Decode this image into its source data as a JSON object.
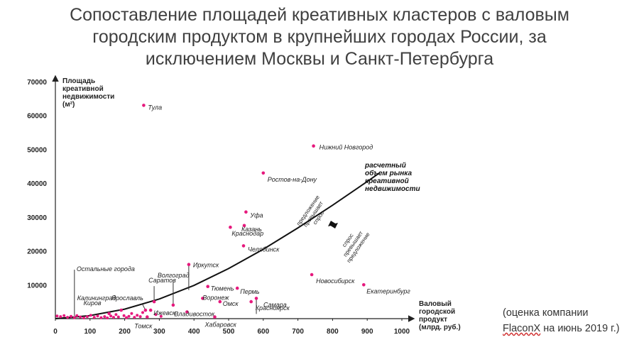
{
  "title_lines": [
    "Сопоставление площадей креативных кластеров с валовым",
    "городским продуктом в крупнейших городах России, за",
    "исключением Москвы и Санкт-Петербурга"
  ],
  "note": {
    "line1": "(оценка компании",
    "line2_brand": "FlaconX",
    "line2_rest": " на июнь 2019 г.)"
  },
  "colors": {
    "point": "#e6197d",
    "axis": "#222222",
    "text": "#222222",
    "title": "#404040"
  },
  "chart_data": {
    "type": "scatter",
    "title": "Сопоставление площадей креативных кластеров с валовым городским продуктом в крупнейших городах России, за исключением Москвы и Санкт-Петербурга",
    "ylabel_lines": [
      "Площадь",
      "креативной",
      "недвижимости",
      "(м²)"
    ],
    "xlabel_lines": [
      "Валовый",
      "городской",
      "продукт",
      "(млрд. руб.)"
    ],
    "xlim": [
      0,
      1000
    ],
    "ylim": [
      0,
      70000
    ],
    "x_ticks": [
      0,
      100,
      200,
      300,
      400,
      500,
      600,
      700,
      800,
      900,
      1000
    ],
    "y_ticks": [
      10000,
      20000,
      30000,
      40000,
      50000,
      60000,
      70000
    ],
    "grid": false,
    "legend": "none",
    "points": [
      {
        "name": "Тула",
        "x": 255,
        "y": 63000
      },
      {
        "name": "Нижний Новгород",
        "x": 745,
        "y": 51000
      },
      {
        "name": "Ростов-на-Дону",
        "x": 600,
        "y": 43000
      },
      {
        "name": "Уфа",
        "x": 550,
        "y": 31500
      },
      {
        "name": "Казань",
        "x": 545,
        "y": 27500
      },
      {
        "name": "Краснодар",
        "x": 505,
        "y": 27000
      },
      {
        "name": "Челябинск",
        "x": 543,
        "y": 21500
      },
      {
        "name": "Новосибирск",
        "x": 740,
        "y": 13000
      },
      {
        "name": "Екатеринбург",
        "x": 890,
        "y": 10000
      },
      {
        "name": "Иркутск",
        "x": 385,
        "y": 16000
      },
      {
        "name": "Тюмень",
        "x": 440,
        "y": 9500
      },
      {
        "name": "Пермь",
        "x": 525,
        "y": 9000
      },
      {
        "name": "Воронеж",
        "x": 425,
        "y": 6000
      },
      {
        "name": "Омск",
        "x": 475,
        "y": 5000
      },
      {
        "name": "Самара",
        "x": 580,
        "y": 6000
      },
      {
        "name": "Красноярск",
        "x": 565,
        "y": 5000
      },
      {
        "name": "Волгоград",
        "x": 340,
        "y": 4000
      },
      {
        "name": "Саратов",
        "x": 285,
        "y": 5000
      },
      {
        "name": "Ярославль",
        "x": 260,
        "y": 2500
      },
      {
        "name": "Калининград",
        "x": 190,
        "y": 2500
      },
      {
        "name": "Киров",
        "x": 155,
        "y": 1500
      },
      {
        "name": "Ижевск",
        "x": 275,
        "y": 2500
      },
      {
        "name": "Томск",
        "x": 265,
        "y": 500
      },
      {
        "name": "Владивосток",
        "x": 380,
        "y": 2000
      },
      {
        "name": "Хабаровск",
        "x": 460,
        "y": 500
      },
      {
        "name": "",
        "x": 5,
        "y": 800
      },
      {
        "name": "",
        "x": 15,
        "y": 600
      },
      {
        "name": "",
        "x": 25,
        "y": 900
      },
      {
        "name": "",
        "x": 35,
        "y": 400
      },
      {
        "name": "",
        "x": 45,
        "y": 700
      },
      {
        "name": "",
        "x": 55,
        "y": 300
      },
      {
        "name": "",
        "x": 62,
        "y": 900
      },
      {
        "name": "",
        "x": 72,
        "y": 500
      },
      {
        "name": "",
        "x": 82,
        "y": 200
      },
      {
        "name": "",
        "x": 92,
        "y": 600
      },
      {
        "name": "",
        "x": 102,
        "y": 1000
      },
      {
        "name": "",
        "x": 112,
        "y": 400
      },
      {
        "name": "",
        "x": 122,
        "y": 800
      },
      {
        "name": "",
        "x": 132,
        "y": 300
      },
      {
        "name": "",
        "x": 142,
        "y": 600
      },
      {
        "name": "",
        "x": 150,
        "y": 200
      },
      {
        "name": "",
        "x": 160,
        "y": 800
      },
      {
        "name": "",
        "x": 168,
        "y": 400
      },
      {
        "name": "",
        "x": 175,
        "y": 1200
      },
      {
        "name": "",
        "x": 182,
        "y": 500
      },
      {
        "name": "",
        "x": 198,
        "y": 900
      },
      {
        "name": "",
        "x": 205,
        "y": 300
      },
      {
        "name": "",
        "x": 212,
        "y": 700
      },
      {
        "name": "",
        "x": 220,
        "y": 1500
      },
      {
        "name": "",
        "x": 228,
        "y": 400
      },
      {
        "name": "",
        "x": 236,
        "y": 1000
      },
      {
        "name": "",
        "x": 245,
        "y": 600
      },
      {
        "name": "",
        "x": 252,
        "y": 1800
      },
      {
        "name": "",
        "x": 290,
        "y": 1200
      },
      {
        "name": "",
        "x": 305,
        "y": 700
      }
    ],
    "curve": {
      "label_lines": [
        "расчетный",
        "объем рынка",
        "креативной",
        "недвижимости"
      ],
      "x": [
        0,
        100,
        200,
        300,
        400,
        500,
        600,
        700,
        800,
        900,
        935
      ],
      "y": [
        0,
        900,
        2800,
        5800,
        9800,
        14800,
        20500,
        26800,
        33500,
        40500,
        43000
      ]
    },
    "annotations": {
      "other_cities": "Остальные города",
      "above_lines": [
        "предложение",
        "превышает",
        "спрос"
      ],
      "below_lines": [
        "спрос",
        "превышает",
        "предложение"
      ]
    }
  }
}
